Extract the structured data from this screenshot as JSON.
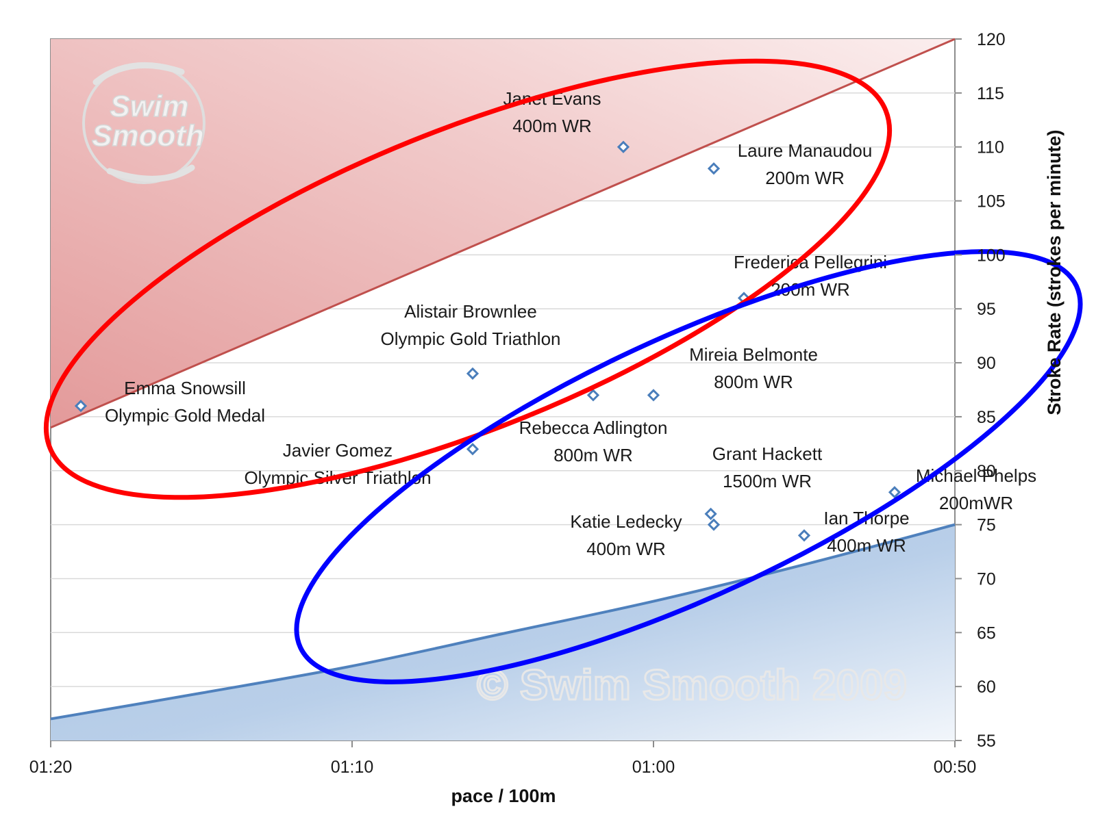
{
  "chart_data": {
    "type": "scatter",
    "xlabel": "pace / 100m",
    "ylabel": "Stroke Rate (strokes per minute)",
    "x_unit": "seconds per 100m",
    "x_axis_reversed": true,
    "xlim": [
      80,
      50
    ],
    "ylim": [
      55,
      120
    ],
    "y_axis_position": "right",
    "x_ticks": [
      {
        "value": 80,
        "label": "01:20"
      },
      {
        "value": 70,
        "label": "01:10"
      },
      {
        "value": 60,
        "label": "01:00"
      },
      {
        "value": 50,
        "label": "00:50"
      }
    ],
    "y_ticks": [
      55,
      60,
      65,
      70,
      75,
      80,
      85,
      90,
      95,
      100,
      105,
      110,
      115,
      120
    ],
    "grid": "horizontal",
    "points": [
      {
        "label": [
          "Emma Snowsill",
          "Olympic Gold Medal"
        ],
        "x": 79.0,
        "y": 86
      },
      {
        "label": [
          "Janet Evans",
          "400m WR"
        ],
        "x": 61.0,
        "y": 110
      },
      {
        "label": [
          "Laure Manaudou",
          "200m WR"
        ],
        "x": 58.0,
        "y": 108
      },
      {
        "label": [
          "Frederica Pellegrini",
          "200m WR"
        ],
        "x": 57.0,
        "y": 96
      },
      {
        "label": [
          "Alistair Brownlee",
          "Olympic Gold Triathlon"
        ],
        "x": 66.0,
        "y": 89
      },
      {
        "label": [],
        "x": 62.0,
        "y": 87
      },
      {
        "label": [
          "Mireia Belmonte",
          "800m WR"
        ],
        "x": 60.0,
        "y": 87
      },
      {
        "label": [
          "Javier Gomez",
          "Olympic Silver Triathlon"
        ],
        "x": 66.0,
        "y": 82
      },
      {
        "label": [
          "Rebecca Adlington",
          "800m WR"
        ],
        "x": null,
        "y": null
      },
      {
        "label": [
          "Grant Hackett",
          "1500m WR"
        ],
        "x": 58.1,
        "y": 76
      },
      {
        "label": [
          "Katie Ledecky",
          "400m WR"
        ],
        "x": 58.0,
        "y": 75
      },
      {
        "label": [
          "Ian Thorpe",
          "400m WR"
        ],
        "x": 55.0,
        "y": 74
      },
      {
        "label": [
          "Michael Phelps",
          "200mWR"
        ],
        "x": 52.0,
        "y": 78
      }
    ],
    "upper_band": {
      "line": [
        [
          80,
          84
        ],
        [
          50,
          120
        ]
      ],
      "fill": "above",
      "color": "#c0504d"
    },
    "lower_band": {
      "curve": [
        [
          80,
          57
        ],
        [
          75,
          59.4
        ],
        [
          70,
          61.9
        ],
        [
          65,
          64.9
        ],
        [
          60,
          67.9
        ],
        [
          55,
          71.3
        ],
        [
          50,
          75
        ]
      ],
      "fill": "below",
      "color": "#4f81bd"
    },
    "red_ellipse": {
      "color": "#ff0000"
    },
    "blue_ellipse": {
      "color": "#0000ff"
    },
    "watermark_text": "© Swim Smooth 2009",
    "logo_text": [
      "Swim",
      "Smooth"
    ]
  }
}
